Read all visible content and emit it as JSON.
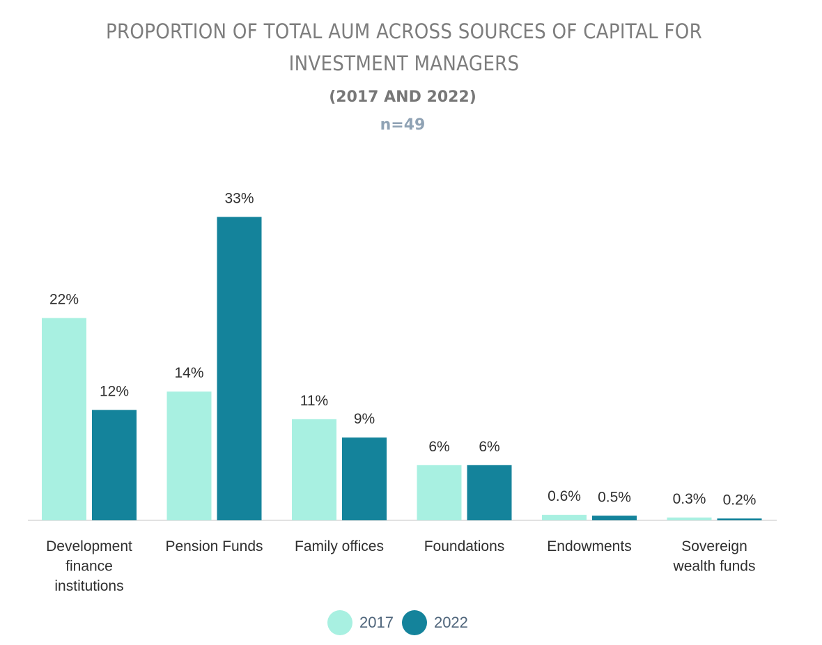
{
  "chart_data": {
    "type": "bar",
    "title": "PROPORTION OF TOTAL AUM ACROSS SOURCES OF CAPITAL FOR INVESTMENT MANAGERS",
    "subtitle": "(2017 AND 2022)",
    "sample_size": "n=49",
    "categories": [
      [
        "Development",
        "finance",
        "institutions"
      ],
      [
        "Pension Funds"
      ],
      [
        "Family offices"
      ],
      [
        "Foundations"
      ],
      [
        "Endowments"
      ],
      [
        "Sovereign",
        "wealth funds"
      ]
    ],
    "series": [
      {
        "name": "2017",
        "color": "#a8f0e1",
        "values": [
          22,
          14,
          11,
          6,
          0.6,
          0.3
        ],
        "labels": [
          "22%",
          "14%",
          "11%",
          "6%",
          "0.6%",
          "0.3%"
        ]
      },
      {
        "name": "2022",
        "color": "#14839b",
        "values": [
          12,
          33,
          9,
          6,
          0.5,
          0.2
        ],
        "labels": [
          "12%",
          "33%",
          "9%",
          "6%",
          "0.5%",
          "0.2%"
        ]
      }
    ],
    "ylim": [
      0,
      35
    ],
    "grid": false,
    "legend": "bottom-center",
    "xlabel": "",
    "ylabel": ""
  },
  "colors": {
    "title": "#7d7d7d",
    "subtitle": "#777777",
    "sample": "#8fa2b4",
    "labels": "#2f2f2f",
    "axis": "#d8d8d8",
    "legend_text": "#4f657b"
  }
}
